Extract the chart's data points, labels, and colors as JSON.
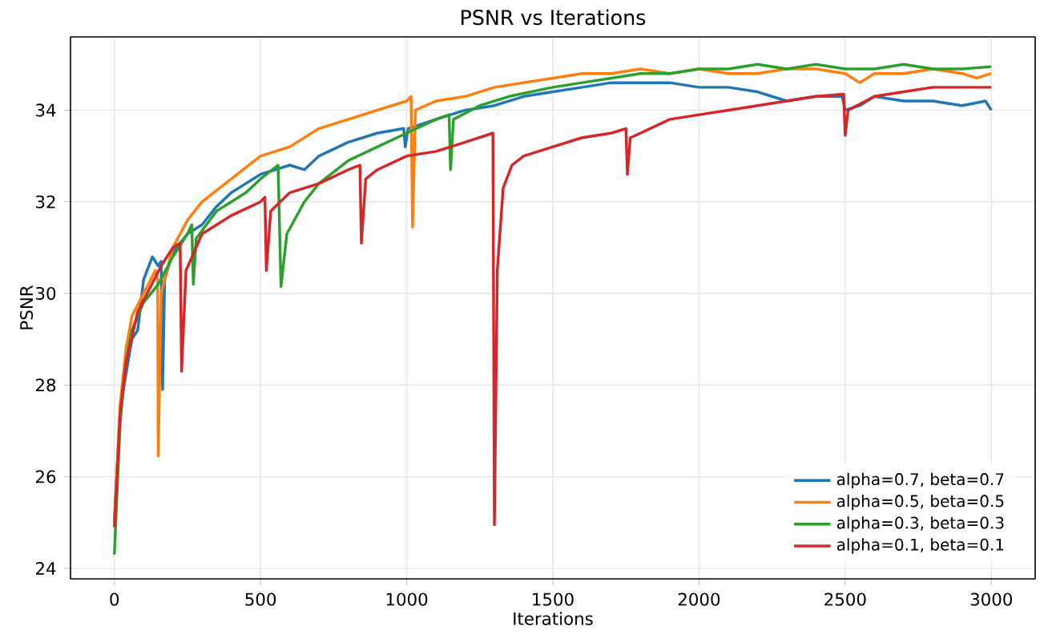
{
  "chart_data": {
    "type": "line",
    "title": "PSNR vs Iterations",
    "xlabel": "Iterations",
    "ylabel": "PSNR",
    "xlim": [
      -150,
      3150
    ],
    "ylim": [
      23.77,
      35.6
    ],
    "xticks": [
      0,
      500,
      1000,
      1500,
      2000,
      2500,
      3000
    ],
    "yticks": [
      24,
      26,
      28,
      30,
      32,
      34
    ],
    "grid": true,
    "legend": "bottom right",
    "line_style": "solid",
    "marker": "none",
    "series": [
      {
        "name": "alpha=0.7, beta=0.7",
        "color": "#1f77b4",
        "x": [
          0,
          20,
          60,
          80,
          100,
          130,
          150,
          160,
          165,
          172,
          200,
          250,
          300,
          350,
          400,
          450,
          500,
          600,
          650,
          700,
          800,
          900,
          990,
          995,
          1005,
          1100,
          1200,
          1300,
          1400,
          1500,
          1600,
          1700,
          1800,
          1900,
          2000,
          2100,
          2200,
          2300,
          2400,
          2490,
          2500,
          2550,
          2600,
          2700,
          2800,
          2900,
          2980,
          3000
        ],
        "values": [
          25.0,
          27.5,
          29.0,
          29.2,
          30.3,
          30.8,
          30.6,
          30.7,
          27.9,
          30.3,
          30.9,
          31.3,
          31.5,
          31.9,
          32.2,
          32.4,
          32.6,
          32.8,
          32.7,
          33.0,
          33.3,
          33.5,
          33.6,
          33.2,
          33.6,
          33.8,
          34.0,
          34.1,
          34.3,
          34.4,
          34.5,
          34.6,
          34.6,
          34.6,
          34.5,
          34.5,
          34.4,
          34.2,
          34.3,
          34.3,
          34.0,
          34.1,
          34.3,
          34.2,
          34.2,
          34.1,
          34.2,
          34.0
        ]
      },
      {
        "name": "alpha=0.5, beta=0.5",
        "color": "#ff7f0e",
        "x": [
          0,
          20,
          40,
          60,
          100,
          140,
          148,
          150,
          160,
          200,
          250,
          300,
          400,
          500,
          600,
          700,
          800,
          900,
          1000,
          1015,
          1020,
          1030,
          1100,
          1200,
          1300,
          1400,
          1500,
          1600,
          1700,
          1800,
          1900,
          2000,
          2100,
          2200,
          2300,
          2400,
          2500,
          2550,
          2600,
          2700,
          2800,
          2900,
          2950,
          3000
        ],
        "values": [
          25.0,
          27.6,
          28.8,
          29.5,
          30.0,
          30.5,
          30.3,
          26.45,
          30.0,
          31.0,
          31.6,
          32.0,
          32.5,
          33.0,
          33.2,
          33.6,
          33.8,
          34.0,
          34.2,
          34.3,
          31.45,
          34.0,
          34.2,
          34.3,
          34.5,
          34.6,
          34.7,
          34.8,
          34.8,
          34.9,
          34.8,
          34.9,
          34.8,
          34.8,
          34.9,
          34.9,
          34.8,
          34.6,
          34.8,
          34.8,
          34.9,
          34.8,
          34.7,
          34.8
        ]
      },
      {
        "name": "alpha=0.3, beta=0.3",
        "color": "#2ca02c",
        "x": [
          0,
          20,
          40,
          60,
          100,
          150,
          200,
          250,
          265,
          270,
          280,
          350,
          400,
          450,
          500,
          560,
          570,
          590,
          650,
          700,
          800,
          900,
          1000,
          1100,
          1145,
          1150,
          1160,
          1250,
          1350,
          1500,
          1600,
          1700,
          1800,
          1900,
          2000,
          2100,
          2200,
          2300,
          2400,
          2500,
          2600,
          2700,
          2800,
          2900,
          3000
        ],
        "values": [
          24.3,
          27.2,
          28.5,
          29.2,
          29.8,
          30.2,
          30.8,
          31.3,
          31.5,
          30.2,
          31.2,
          31.8,
          32.0,
          32.2,
          32.5,
          32.8,
          30.15,
          31.3,
          32.0,
          32.4,
          32.9,
          33.2,
          33.5,
          33.8,
          33.9,
          32.7,
          33.8,
          34.1,
          34.3,
          34.5,
          34.6,
          34.7,
          34.8,
          34.8,
          34.9,
          34.9,
          35.0,
          34.9,
          35.0,
          34.9,
          34.9,
          35.0,
          34.9,
          34.9,
          34.95
        ]
      },
      {
        "name": "alpha=0.1, beta=0.1",
        "color": "#d62728",
        "x": [
          0,
          20,
          40,
          80,
          120,
          160,
          200,
          225,
          230,
          245,
          300,
          400,
          500,
          515,
          520,
          535,
          600,
          700,
          800,
          840,
          845,
          860,
          900,
          1000,
          1100,
          1200,
          1295,
          1300,
          1310,
          1330,
          1360,
          1400,
          1500,
          1600,
          1700,
          1750,
          1755,
          1765,
          1800,
          1900,
          2000,
          2100,
          2200,
          2300,
          2400,
          2495,
          2500,
          2510,
          2600,
          2700,
          2800,
          2900,
          3000
        ],
        "values": [
          24.9,
          27.4,
          28.5,
          29.6,
          30.1,
          30.6,
          31.0,
          31.1,
          28.3,
          30.5,
          31.3,
          31.7,
          32.0,
          32.1,
          30.5,
          31.8,
          32.2,
          32.4,
          32.7,
          32.8,
          31.1,
          32.5,
          32.7,
          33.0,
          33.1,
          33.3,
          33.5,
          24.95,
          30.5,
          32.3,
          32.8,
          33.0,
          33.2,
          33.4,
          33.5,
          33.6,
          32.6,
          33.4,
          33.5,
          33.8,
          33.9,
          34.0,
          34.1,
          34.2,
          34.3,
          34.35,
          33.45,
          34.0,
          34.3,
          34.4,
          34.5,
          34.5,
          34.5
        ]
      }
    ]
  }
}
